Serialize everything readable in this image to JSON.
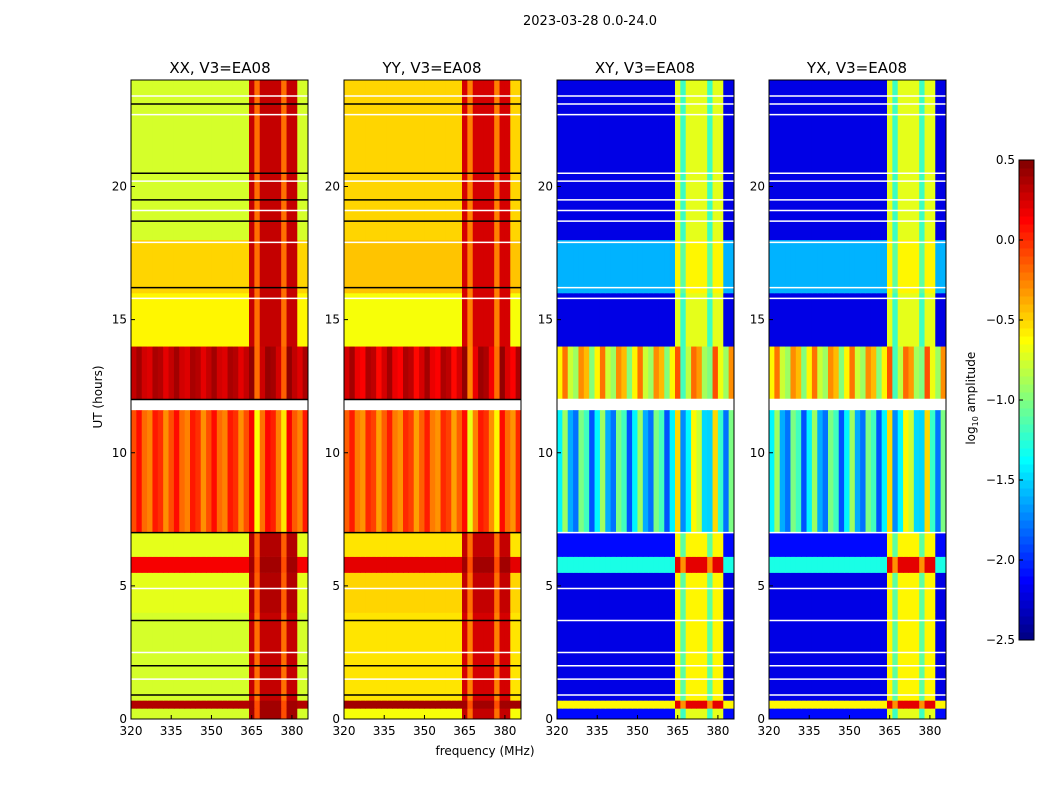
{
  "chart_data": {
    "type": "heatmap",
    "title": "2023-03-28 0.0-24.0",
    "xlabel": "frequency (MHz)",
    "ylabel": "UT (hours)",
    "xlim": [
      320,
      386
    ],
    "ylim": [
      0,
      24
    ],
    "xticks": [
      "320",
      "335",
      "350",
      "365",
      "380"
    ],
    "yticks": [
      "0",
      "5",
      "10",
      "15",
      "20"
    ],
    "rfi_band_mhz": [
      363,
      381
    ],
    "colorbar": {
      "label": "log10 amplitude",
      "label_main": "log",
      "label_sub": "10",
      "label_tail": " amplitude",
      "range": [
        -2.5,
        0.5
      ],
      "ticks": [
        "0.5",
        "0.0",
        "−0.5",
        "−1.0",
        "−1.5",
        "−2.0",
        "−2.5"
      ],
      "colormap": "jet"
    },
    "flagged_hours": [
      0.9,
      1.5,
      2.0,
      2.5,
      3.7,
      4.9,
      7.0,
      11.7,
      12.0,
      15.8,
      16.2,
      17.9,
      18.7,
      19.1,
      19.5,
      20.2,
      20.5,
      22.7,
      23.1,
      23.4
    ],
    "panels": [
      {
        "title": "XX, V3=EA08",
        "segments": [
          [
            0,
            0.4,
            -0.75,
            0.4,
            0
          ],
          [
            0.4,
            0.7,
            0.35,
            0.4,
            0
          ],
          [
            0.7,
            4,
            -0.75,
            0.3,
            0
          ],
          [
            4,
            5.5,
            -0.7,
            0.35,
            0
          ],
          [
            5.5,
            6.1,
            0.15,
            0.4,
            0
          ],
          [
            6.1,
            7,
            -0.7,
            0.35,
            0
          ],
          [
            7,
            11.6,
            -0.1,
            -0.05,
            0.2
          ],
          [
            12,
            14,
            0.3,
            0.35,
            0.1
          ],
          [
            14,
            16,
            -0.6,
            0.3,
            0
          ],
          [
            16,
            18,
            -0.5,
            0.3,
            0
          ],
          [
            18,
            24,
            -0.75,
            0.3,
            0
          ]
        ]
      },
      {
        "title": "YY, V3=EA08",
        "segments": [
          [
            0,
            0.4,
            -0.65,
            0.3,
            0
          ],
          [
            0.4,
            0.7,
            0.4,
            0.4,
            0
          ],
          [
            0.7,
            4,
            -0.55,
            0.25,
            0
          ],
          [
            4,
            5.5,
            -0.5,
            0.3,
            0
          ],
          [
            5.5,
            6.1,
            0.2,
            0.4,
            0
          ],
          [
            6.1,
            7,
            -0.55,
            0.3,
            0
          ],
          [
            7,
            11.6,
            -0.15,
            -0.1,
            0.2
          ],
          [
            12,
            14,
            0.25,
            0.3,
            0.15
          ],
          [
            14,
            16,
            -0.65,
            0.25,
            0
          ],
          [
            16,
            18,
            -0.45,
            0.25,
            0
          ],
          [
            18,
            24,
            -0.5,
            0.25,
            0
          ]
        ]
      },
      {
        "title": "XY, V3=EA08",
        "segments": [
          [
            0,
            0.4,
            -2.1,
            -0.7,
            0
          ],
          [
            0.4,
            0.7,
            -0.6,
            0.2,
            0
          ],
          [
            0.7,
            4,
            -2.2,
            -0.6,
            0
          ],
          [
            4,
            5.5,
            -2.2,
            -0.6,
            0
          ],
          [
            5.5,
            6.1,
            -1.3,
            0.2,
            0
          ],
          [
            6.1,
            7,
            -2.1,
            -0.6,
            0
          ],
          [
            7,
            11.6,
            -1.4,
            -1.0,
            0.5
          ],
          [
            12,
            14,
            -0.6,
            -0.5,
            0.4
          ],
          [
            14,
            16,
            -2.2,
            -0.7,
            0
          ],
          [
            16,
            18,
            -1.6,
            -0.6,
            0
          ],
          [
            18,
            24,
            -2.2,
            -0.7,
            0
          ]
        ]
      },
      {
        "title": "YX, V3=EA08",
        "segments": [
          [
            0,
            0.4,
            -2.1,
            -0.7,
            0
          ],
          [
            0.4,
            0.7,
            -0.6,
            0.2,
            0
          ],
          [
            0.7,
            4,
            -2.2,
            -0.6,
            0
          ],
          [
            4,
            5.5,
            -2.2,
            -0.6,
            0
          ],
          [
            5.5,
            6.1,
            -1.3,
            0.2,
            0
          ],
          [
            6.1,
            7,
            -2.1,
            -0.6,
            0
          ],
          [
            7,
            11.6,
            -1.4,
            -1.0,
            0.5
          ],
          [
            12,
            14,
            -0.6,
            -0.5,
            0.4
          ],
          [
            14,
            16,
            -2.2,
            -0.7,
            0
          ],
          [
            16,
            18,
            -1.6,
            -0.6,
            0
          ],
          [
            18,
            24,
            -2.2,
            -0.7,
            0
          ]
        ]
      }
    ]
  }
}
